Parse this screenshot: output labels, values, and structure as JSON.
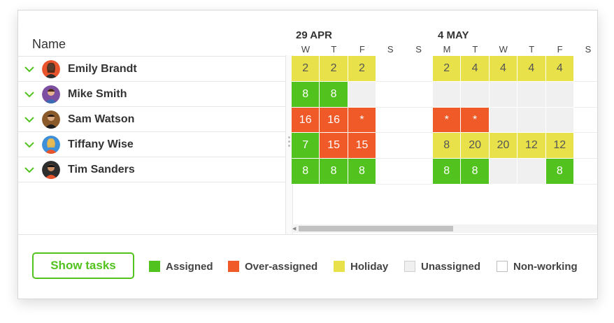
{
  "columns": {
    "name_header": "Name"
  },
  "resources": [
    {
      "name": "Emily Brandt"
    },
    {
      "name": "Mike Smith"
    },
    {
      "name": "Sam Watson"
    },
    {
      "name": "Tiffany Wise"
    },
    {
      "name": "Tim Sanders"
    }
  ],
  "timeline": {
    "weeks": [
      "29 APR",
      "4 MAY"
    ],
    "days": [
      "W",
      "T",
      "F",
      "S",
      "S",
      "M",
      "T",
      "W",
      "T",
      "F",
      "S"
    ]
  },
  "allocations": [
    [
      {
        "type": "holiday",
        "value": "2"
      },
      {
        "type": "holiday",
        "value": "2"
      },
      {
        "type": "holiday",
        "value": "2"
      },
      {
        "type": "nonworking",
        "value": ""
      },
      {
        "type": "nonworking",
        "value": ""
      },
      {
        "type": "holiday",
        "value": "2"
      },
      {
        "type": "holiday",
        "value": "4"
      },
      {
        "type": "holiday",
        "value": "4"
      },
      {
        "type": "holiday",
        "value": "4"
      },
      {
        "type": "holiday",
        "value": "4"
      },
      {
        "type": "nonworking",
        "value": ""
      }
    ],
    [
      {
        "type": "assigned",
        "value": "8"
      },
      {
        "type": "assigned",
        "value": "8"
      },
      {
        "type": "unassigned",
        "value": ""
      },
      {
        "type": "nonworking",
        "value": ""
      },
      {
        "type": "nonworking",
        "value": ""
      },
      {
        "type": "unassigned",
        "value": ""
      },
      {
        "type": "unassigned",
        "value": ""
      },
      {
        "type": "unassigned",
        "value": ""
      },
      {
        "type": "unassigned",
        "value": ""
      },
      {
        "type": "unassigned",
        "value": ""
      },
      {
        "type": "nonworking",
        "value": ""
      }
    ],
    [
      {
        "type": "over",
        "value": "16"
      },
      {
        "type": "over",
        "value": "16"
      },
      {
        "type": "over",
        "value": "*"
      },
      {
        "type": "nonworking",
        "value": ""
      },
      {
        "type": "nonworking",
        "value": ""
      },
      {
        "type": "over",
        "value": "*"
      },
      {
        "type": "over",
        "value": "*"
      },
      {
        "type": "unassigned",
        "value": ""
      },
      {
        "type": "unassigned",
        "value": ""
      },
      {
        "type": "unassigned",
        "value": ""
      },
      {
        "type": "nonworking",
        "value": ""
      }
    ],
    [
      {
        "type": "assigned",
        "value": "7"
      },
      {
        "type": "over",
        "value": "15"
      },
      {
        "type": "over",
        "value": "15"
      },
      {
        "type": "nonworking",
        "value": ""
      },
      {
        "type": "nonworking",
        "value": ""
      },
      {
        "type": "holiday",
        "value": "8"
      },
      {
        "type": "holiday",
        "value": "20"
      },
      {
        "type": "holiday",
        "value": "20"
      },
      {
        "type": "holiday",
        "value": "12"
      },
      {
        "type": "holiday",
        "value": "12"
      },
      {
        "type": "nonworking",
        "value": ""
      }
    ],
    [
      {
        "type": "assigned",
        "value": "8"
      },
      {
        "type": "assigned",
        "value": "8"
      },
      {
        "type": "assigned",
        "value": "8"
      },
      {
        "type": "nonworking",
        "value": ""
      },
      {
        "type": "nonworking",
        "value": ""
      },
      {
        "type": "assigned",
        "value": "8"
      },
      {
        "type": "assigned",
        "value": "8"
      },
      {
        "type": "unassigned",
        "value": ""
      },
      {
        "type": "unassigned",
        "value": ""
      },
      {
        "type": "assigned",
        "value": "8"
      },
      {
        "type": "nonworking",
        "value": ""
      }
    ]
  ],
  "footer": {
    "show_tasks_label": "Show tasks",
    "legend": [
      {
        "label": "Assigned",
        "color": "#52c21e"
      },
      {
        "label": "Over-assigned",
        "color": "#f05a28"
      },
      {
        "label": "Holiday",
        "color": "#e8e14a"
      },
      {
        "label": "Unassigned",
        "color": "#f0f0f0"
      },
      {
        "label": "Non-working",
        "color": "#ffffff"
      }
    ]
  },
  "colors": {
    "assigned": "#52c21e",
    "over": "#f05a28",
    "holiday": "#e8e14a",
    "unassigned": "#f0f0f0",
    "nonworking": "#ffffff"
  }
}
